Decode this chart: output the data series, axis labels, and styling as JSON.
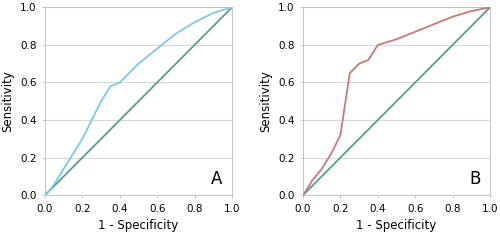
{
  "panel_A": {
    "roc_curve": {
      "x": [
        0.0,
        0.02,
        0.05,
        0.1,
        0.15,
        0.2,
        0.25,
        0.3,
        0.35,
        0.4,
        0.5,
        0.6,
        0.7,
        0.8,
        0.9,
        1.0
      ],
      "y": [
        0.0,
        0.02,
        0.06,
        0.14,
        0.22,
        0.3,
        0.4,
        0.5,
        0.58,
        0.6,
        0.7,
        0.78,
        0.86,
        0.92,
        0.97,
        1.0
      ]
    },
    "diagonal": {
      "x": [
        0.0,
        1.0
      ],
      "y": [
        0.0,
        1.0
      ]
    },
    "roc_color": "#7ec8e3",
    "diag_color": "#5a9e8a",
    "label": "A"
  },
  "panel_B": {
    "roc_curve": {
      "x": [
        0.0,
        0.02,
        0.05,
        0.1,
        0.15,
        0.2,
        0.25,
        0.3,
        0.35,
        0.4,
        0.5,
        0.6,
        0.7,
        0.8,
        0.9,
        1.0
      ],
      "y": [
        0.0,
        0.03,
        0.08,
        0.14,
        0.22,
        0.32,
        0.65,
        0.7,
        0.72,
        0.8,
        0.83,
        0.87,
        0.91,
        0.95,
        0.98,
        1.0
      ]
    },
    "diagonal": {
      "x": [
        0.0,
        1.0
      ],
      "y": [
        0.0,
        1.0
      ]
    },
    "roc_color": "#c87878",
    "diag_color": "#5a9e8a",
    "label": "B"
  },
  "xlabel": "1 - Specificity",
  "ylabel": "Sensitivity",
  "xlim": [
    0.0,
    1.0
  ],
  "ylim": [
    0.0,
    1.0
  ],
  "xticks": [
    0.0,
    0.2,
    0.4,
    0.6,
    0.8,
    1.0
  ],
  "yticks": [
    0.0,
    0.2,
    0.4,
    0.6,
    0.8,
    1.0
  ],
  "background_color": "#ffffff",
  "grid_color": "#d8d8d8",
  "tick_fontsize": 7.5,
  "label_fontsize": 8.5,
  "panel_label_fontsize": 12,
  "linewidth": 1.3
}
